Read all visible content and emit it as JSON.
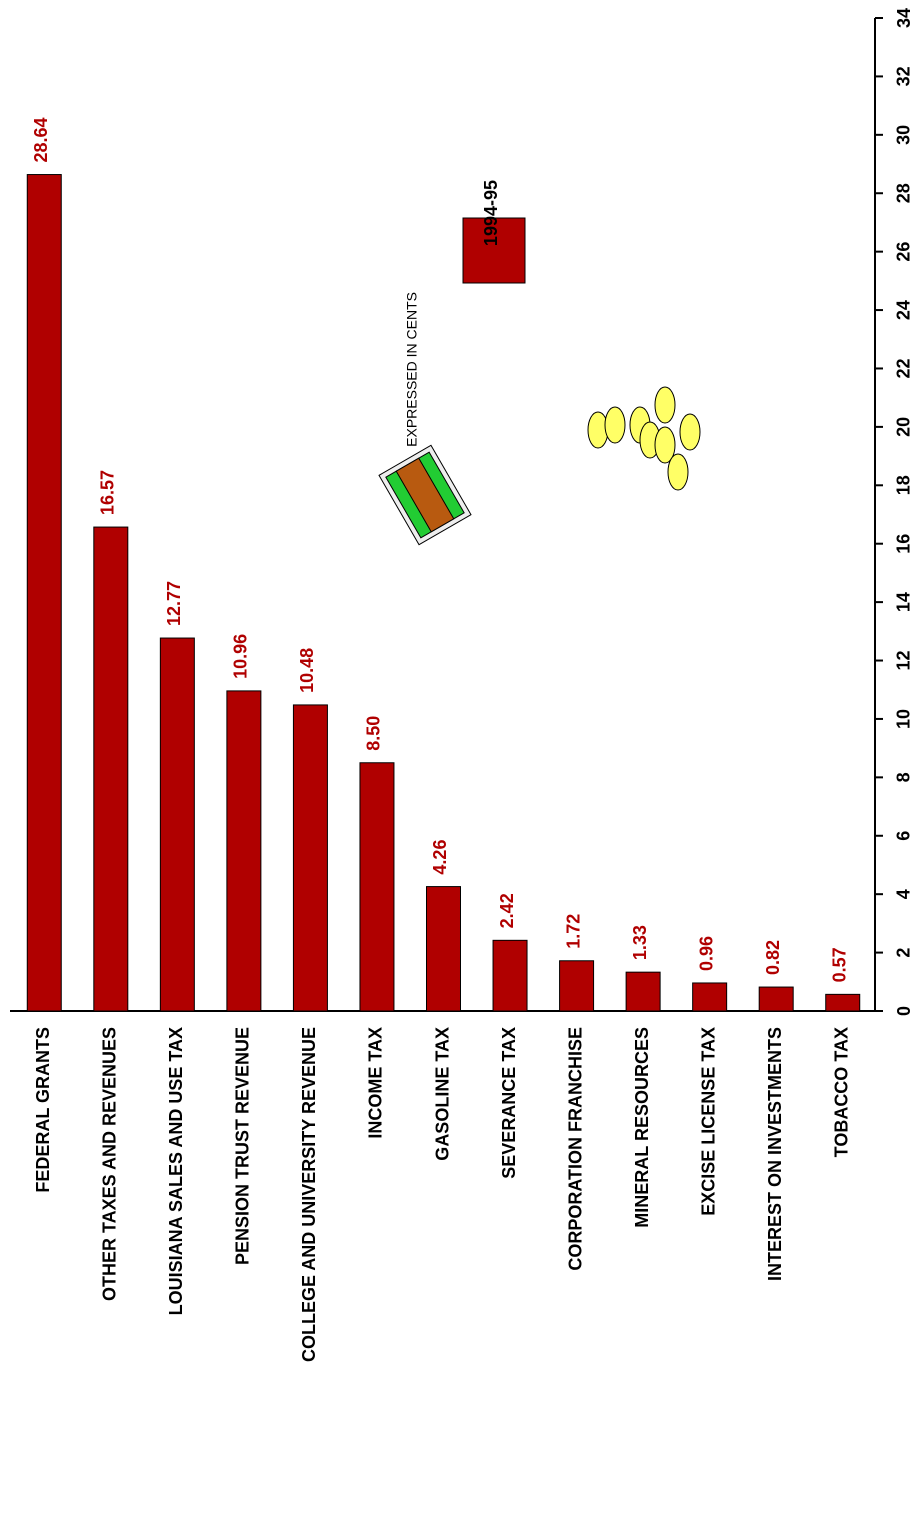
{
  "chart_data": {
    "type": "bar",
    "annotation": "EXPRESSED IN CENTS",
    "categories": [
      "FEDERAL GRANTS",
      "OTHER TAXES AND REVENUES",
      "LOUISIANA SALES AND USE TAX",
      "PENSION TRUST REVENUE",
      "COLLEGE AND UNIVERSITY REVENUE",
      "INCOME TAX",
      "GASOLINE TAX",
      "SEVERANCE TAX",
      "CORPORATION FRANCHISE",
      "MINERAL RESOURCES",
      "EXCISE LICENSE TAX",
      "INTEREST ON INVESTMENTS",
      "TOBACCO TAX"
    ],
    "series": [
      {
        "name": "1994-95",
        "color": "#b00000",
        "values": [
          28.64,
          16.57,
          12.77,
          10.96,
          10.48,
          8.5,
          4.26,
          2.42,
          1.72,
          1.33,
          0.96,
          0.82,
          0.57
        ],
        "value_labels": [
          "28.64",
          "16.57",
          "12.77",
          "10.96",
          "10.48",
          "8.50",
          "4.26",
          "2.42",
          "1.72",
          "1.33",
          "0.96",
          "0.82",
          "0.57"
        ]
      }
    ],
    "ylim": [
      0,
      34
    ],
    "yticks": [
      0,
      2,
      4,
      6,
      8,
      10,
      12,
      14,
      16,
      18,
      20,
      22,
      24,
      26,
      28,
      30,
      32,
      34
    ],
    "grid": false
  }
}
